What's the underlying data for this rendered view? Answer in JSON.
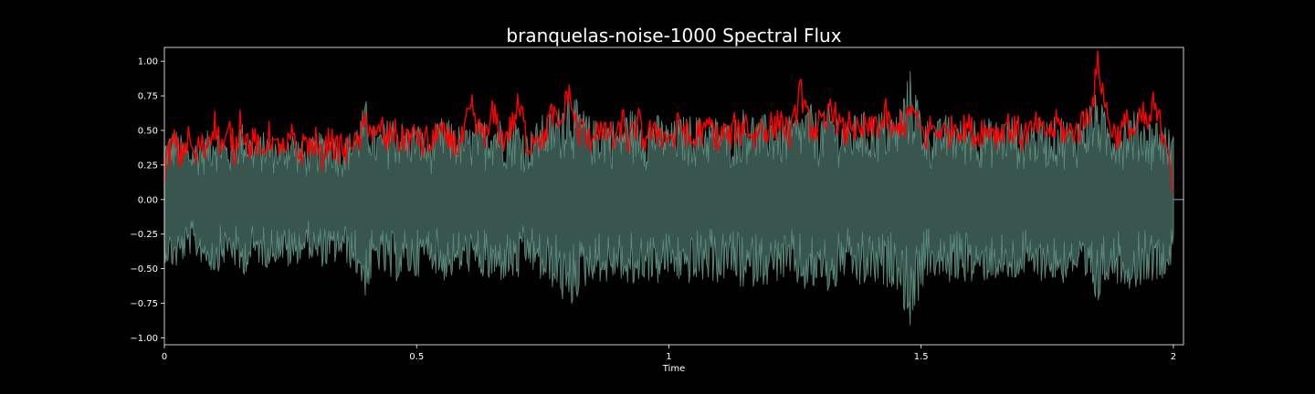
{
  "chart_data": {
    "type": "line",
    "title": "branquelas-noise-1000 Spectral Flux",
    "xlabel": "Time",
    "ylabel": "",
    "xlim": [
      0,
      2.02
    ],
    "ylim": [
      -1.05,
      1.1
    ],
    "x_ticks": [
      0,
      0.5,
      1,
      1.5,
      2
    ],
    "x_tick_labels": [
      "0",
      "0.5",
      "1",
      "1.5",
      "2"
    ],
    "y_ticks": [
      -1.0,
      -0.75,
      -0.5,
      -0.25,
      0.0,
      0.25,
      0.5,
      0.75,
      1.0
    ],
    "y_tick_labels": [
      "−1.00",
      "−0.75",
      "−0.50",
      "−0.25",
      "0.00",
      "0.25",
      "0.50",
      "0.75",
      "1.00"
    ],
    "grid": false,
    "background": "#000000",
    "waveform": {
      "color_fill": "#38564d",
      "color_edge": "#5b8a7c",
      "x_start": 0.0,
      "x_end": 2.0,
      "envelope": [
        [
          0.0,
          0.45
        ],
        [
          0.02,
          0.52
        ],
        [
          0.05,
          0.4
        ],
        [
          0.08,
          0.48
        ],
        [
          0.1,
          0.55
        ],
        [
          0.13,
          0.42
        ],
        [
          0.15,
          0.58
        ],
        [
          0.18,
          0.45
        ],
        [
          0.2,
          0.5
        ],
        [
          0.23,
          0.44
        ],
        [
          0.25,
          0.52
        ],
        [
          0.28,
          0.4
        ],
        [
          0.3,
          0.48
        ],
        [
          0.33,
          0.5
        ],
        [
          0.35,
          0.42
        ],
        [
          0.38,
          0.55
        ],
        [
          0.4,
          0.72
        ],
        [
          0.42,
          0.5
        ],
        [
          0.45,
          0.62
        ],
        [
          0.48,
          0.55
        ],
        [
          0.5,
          0.58
        ],
        [
          0.52,
          0.45
        ],
        [
          0.55,
          0.6
        ],
        [
          0.58,
          0.55
        ],
        [
          0.6,
          0.52
        ],
        [
          0.62,
          0.56
        ],
        [
          0.65,
          0.62
        ],
        [
          0.68,
          0.58
        ],
        [
          0.7,
          0.6
        ],
        [
          0.72,
          0.48
        ],
        [
          0.75,
          0.62
        ],
        [
          0.78,
          0.66
        ],
        [
          0.8,
          0.85
        ],
        [
          0.82,
          0.7
        ],
        [
          0.85,
          0.58
        ],
        [
          0.88,
          0.62
        ],
        [
          0.9,
          0.55
        ],
        [
          0.92,
          0.68
        ],
        [
          0.95,
          0.58
        ],
        [
          0.98,
          0.62
        ],
        [
          1.0,
          0.55
        ],
        [
          1.02,
          0.6
        ],
        [
          1.05,
          0.62
        ],
        [
          1.08,
          0.58
        ],
        [
          1.1,
          0.62
        ],
        [
          1.12,
          0.55
        ],
        [
          1.15,
          0.68
        ],
        [
          1.18,
          0.6
        ],
        [
          1.2,
          0.64
        ],
        [
          1.22,
          0.58
        ],
        [
          1.25,
          0.62
        ],
        [
          1.28,
          0.7
        ],
        [
          1.3,
          0.6
        ],
        [
          1.32,
          0.72
        ],
        [
          1.35,
          0.55
        ],
        [
          1.38,
          0.66
        ],
        [
          1.4,
          0.6
        ],
        [
          1.42,
          0.66
        ],
        [
          1.45,
          0.62
        ],
        [
          1.48,
          0.96
        ],
        [
          1.5,
          0.66
        ],
        [
          1.52,
          0.55
        ],
        [
          1.55,
          0.62
        ],
        [
          1.58,
          0.58
        ],
        [
          1.6,
          0.62
        ],
        [
          1.62,
          0.6
        ],
        [
          1.65,
          0.58
        ],
        [
          1.68,
          0.62
        ],
        [
          1.7,
          0.55
        ],
        [
          1.72,
          0.6
        ],
        [
          1.75,
          0.58
        ],
        [
          1.78,
          0.62
        ],
        [
          1.8,
          0.55
        ],
        [
          1.82,
          0.66
        ],
        [
          1.85,
          0.78
        ],
        [
          1.87,
          0.58
        ],
        [
          1.9,
          0.62
        ],
        [
          1.92,
          0.66
        ],
        [
          1.95,
          0.58
        ],
        [
          1.97,
          0.6
        ],
        [
          2.0,
          0.48
        ]
      ]
    },
    "series": [
      {
        "color": "#ff0000",
        "x": [
          0.0,
          0.01,
          0.02,
          0.03,
          0.04,
          0.05,
          0.06,
          0.07,
          0.08,
          0.09,
          0.1,
          0.11,
          0.12,
          0.13,
          0.14,
          0.15,
          0.16,
          0.17,
          0.18,
          0.19,
          0.2,
          0.21,
          0.22,
          0.23,
          0.24,
          0.25,
          0.26,
          0.27,
          0.28,
          0.29,
          0.3,
          0.31,
          0.32,
          0.33,
          0.34,
          0.35,
          0.36,
          0.37,
          0.38,
          0.39,
          0.4,
          0.41,
          0.42,
          0.43,
          0.44,
          0.45,
          0.46,
          0.47,
          0.48,
          0.49,
          0.5,
          0.51,
          0.52,
          0.53,
          0.54,
          0.55,
          0.56,
          0.57,
          0.58,
          0.59,
          0.6,
          0.61,
          0.62,
          0.63,
          0.64,
          0.65,
          0.66,
          0.67,
          0.68,
          0.69,
          0.7,
          0.71,
          0.72,
          0.73,
          0.74,
          0.75,
          0.76,
          0.77,
          0.78,
          0.79,
          0.8,
          0.81,
          0.82,
          0.83,
          0.84,
          0.85,
          0.86,
          0.87,
          0.88,
          0.89,
          0.9,
          0.91,
          0.92,
          0.93,
          0.94,
          0.95,
          0.96,
          0.97,
          0.98,
          0.99,
          1.0,
          1.01,
          1.02,
          1.03,
          1.04,
          1.05,
          1.06,
          1.07,
          1.08,
          1.09,
          1.1,
          1.11,
          1.12,
          1.13,
          1.14,
          1.15,
          1.16,
          1.17,
          1.18,
          1.19,
          1.2,
          1.21,
          1.22,
          1.23,
          1.24,
          1.25,
          1.26,
          1.27,
          1.28,
          1.29,
          1.3,
          1.31,
          1.32,
          1.33,
          1.34,
          1.35,
          1.36,
          1.37,
          1.38,
          1.39,
          1.4,
          1.41,
          1.42,
          1.43,
          1.44,
          1.45,
          1.46,
          1.47,
          1.48,
          1.49,
          1.5,
          1.51,
          1.52,
          1.53,
          1.54,
          1.55,
          1.56,
          1.57,
          1.58,
          1.59,
          1.6,
          1.61,
          1.62,
          1.63,
          1.64,
          1.65,
          1.66,
          1.67,
          1.68,
          1.69,
          1.7,
          1.71,
          1.72,
          1.73,
          1.74,
          1.75,
          1.76,
          1.77,
          1.78,
          1.79,
          1.8,
          1.81,
          1.82,
          1.83,
          1.84,
          1.85,
          1.86,
          1.87,
          1.88,
          1.89,
          1.9,
          1.91,
          1.92,
          1.93,
          1.94,
          1.95,
          1.96,
          1.97,
          1.98,
          1.99,
          2.0
        ],
        "y": [
          0.2,
          0.35,
          0.42,
          0.3,
          0.38,
          0.45,
          0.28,
          0.4,
          0.36,
          0.48,
          0.55,
          0.42,
          0.38,
          0.5,
          0.32,
          0.6,
          0.45,
          0.38,
          0.44,
          0.3,
          0.4,
          0.48,
          0.35,
          0.42,
          0.3,
          0.46,
          0.38,
          0.32,
          0.44,
          0.36,
          0.42,
          0.3,
          0.38,
          0.45,
          0.34,
          0.4,
          0.32,
          0.46,
          0.38,
          0.44,
          0.6,
          0.5,
          0.42,
          0.55,
          0.38,
          0.52,
          0.46,
          0.4,
          0.48,
          0.42,
          0.5,
          0.38,
          0.44,
          0.36,
          0.52,
          0.48,
          0.4,
          0.45,
          0.38,
          0.42,
          0.56,
          0.65,
          0.48,
          0.52,
          0.44,
          0.62,
          0.55,
          0.42,
          0.48,
          0.54,
          0.66,
          0.6,
          0.38,
          0.44,
          0.5,
          0.4,
          0.56,
          0.62,
          0.52,
          0.58,
          0.8,
          0.64,
          0.46,
          0.52,
          0.4,
          0.48,
          0.55,
          0.44,
          0.5,
          0.42,
          0.46,
          0.58,
          0.4,
          0.48,
          0.56,
          0.42,
          0.5,
          0.45,
          0.52,
          0.44,
          0.48,
          0.42,
          0.56,
          0.5,
          0.44,
          0.4,
          0.52,
          0.46,
          0.55,
          0.48,
          0.42,
          0.5,
          0.44,
          0.52,
          0.46,
          0.58,
          0.5,
          0.44,
          0.54,
          0.48,
          0.56,
          0.5,
          0.6,
          0.52,
          0.46,
          0.58,
          0.84,
          0.62,
          0.54,
          0.5,
          0.56,
          0.48,
          0.72,
          0.6,
          0.52,
          0.46,
          0.58,
          0.5,
          0.44,
          0.54,
          0.48,
          0.56,
          0.52,
          0.62,
          0.5,
          0.46,
          0.58,
          0.52,
          0.68,
          0.56,
          0.5,
          0.44,
          0.54,
          0.48,
          0.52,
          0.46,
          0.5,
          0.56,
          0.48,
          0.54,
          0.5,
          0.44,
          0.52,
          0.48,
          0.54,
          0.46,
          0.5,
          0.56,
          0.48,
          0.52,
          0.44,
          0.5,
          0.48,
          0.54,
          0.46,
          0.52,
          0.48,
          0.56,
          0.5,
          0.46,
          0.52,
          0.48,
          0.56,
          0.62,
          0.7,
          0.98,
          0.8,
          0.58,
          0.5,
          0.46,
          0.52,
          0.56,
          0.48,
          0.54,
          0.6,
          0.52,
          0.68,
          0.58,
          0.48,
          0.42,
          0.05
        ]
      }
    ]
  }
}
